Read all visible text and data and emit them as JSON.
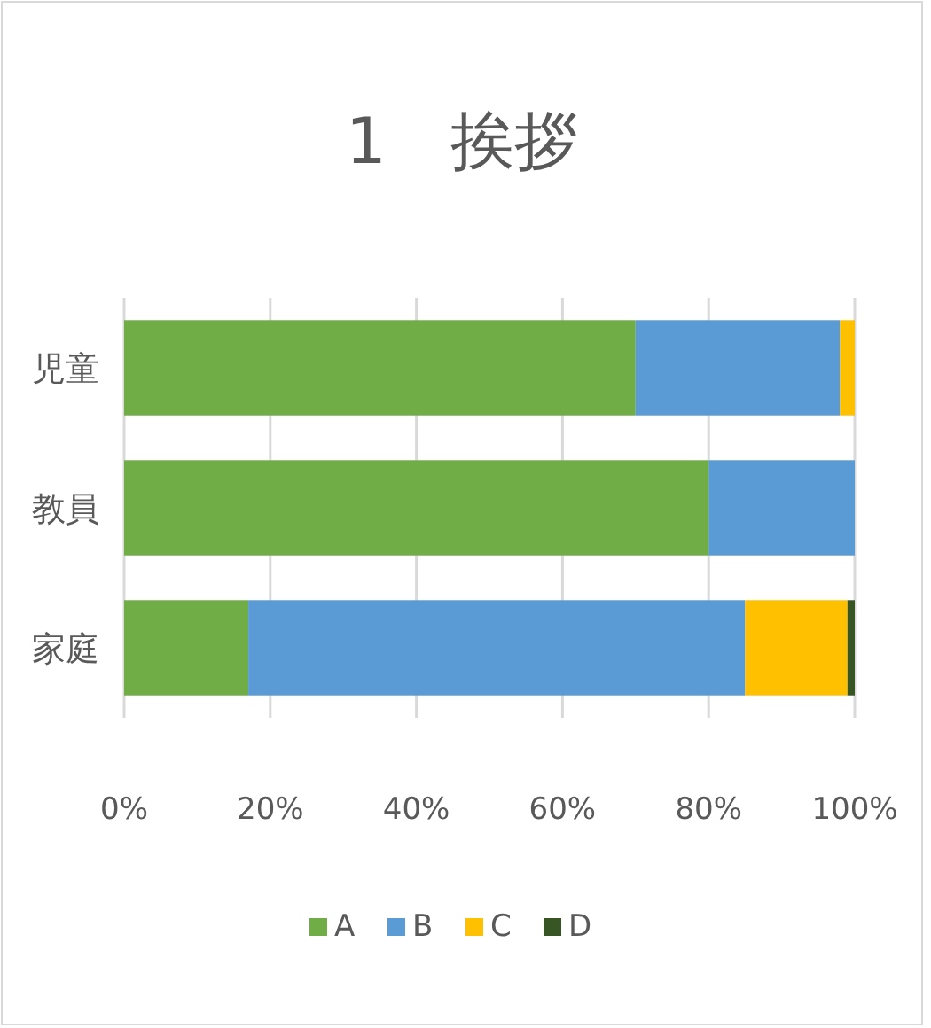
{
  "chart_data": {
    "type": "bar",
    "title": "1　挨拶",
    "orientation": "horizontal",
    "stacked": true,
    "categories": [
      "児童",
      "教員",
      "家庭"
    ],
    "series": [
      {
        "name": "A",
        "color": "#70ad47",
        "values": [
          70,
          80,
          17
        ]
      },
      {
        "name": "B",
        "color": "#5b9bd5",
        "values": [
          28,
          20,
          68
        ]
      },
      {
        "name": "C",
        "color": "#ffc000",
        "values": [
          2,
          null,
          14
        ]
      },
      {
        "name": "D",
        "color": "#375623",
        "values": [
          null,
          null,
          1
        ]
      }
    ],
    "xlim": [
      0,
      100
    ],
    "xticks": [
      {
        "value": 0,
        "label": "0%"
      },
      {
        "value": 20,
        "label": "20%"
      },
      {
        "value": 40,
        "label": "40%"
      },
      {
        "value": 60,
        "label": "60%"
      },
      {
        "value": 80,
        "label": "80%"
      },
      {
        "value": 100,
        "label": "100%"
      }
    ],
    "grid": "x",
    "legend": "bottom"
  }
}
